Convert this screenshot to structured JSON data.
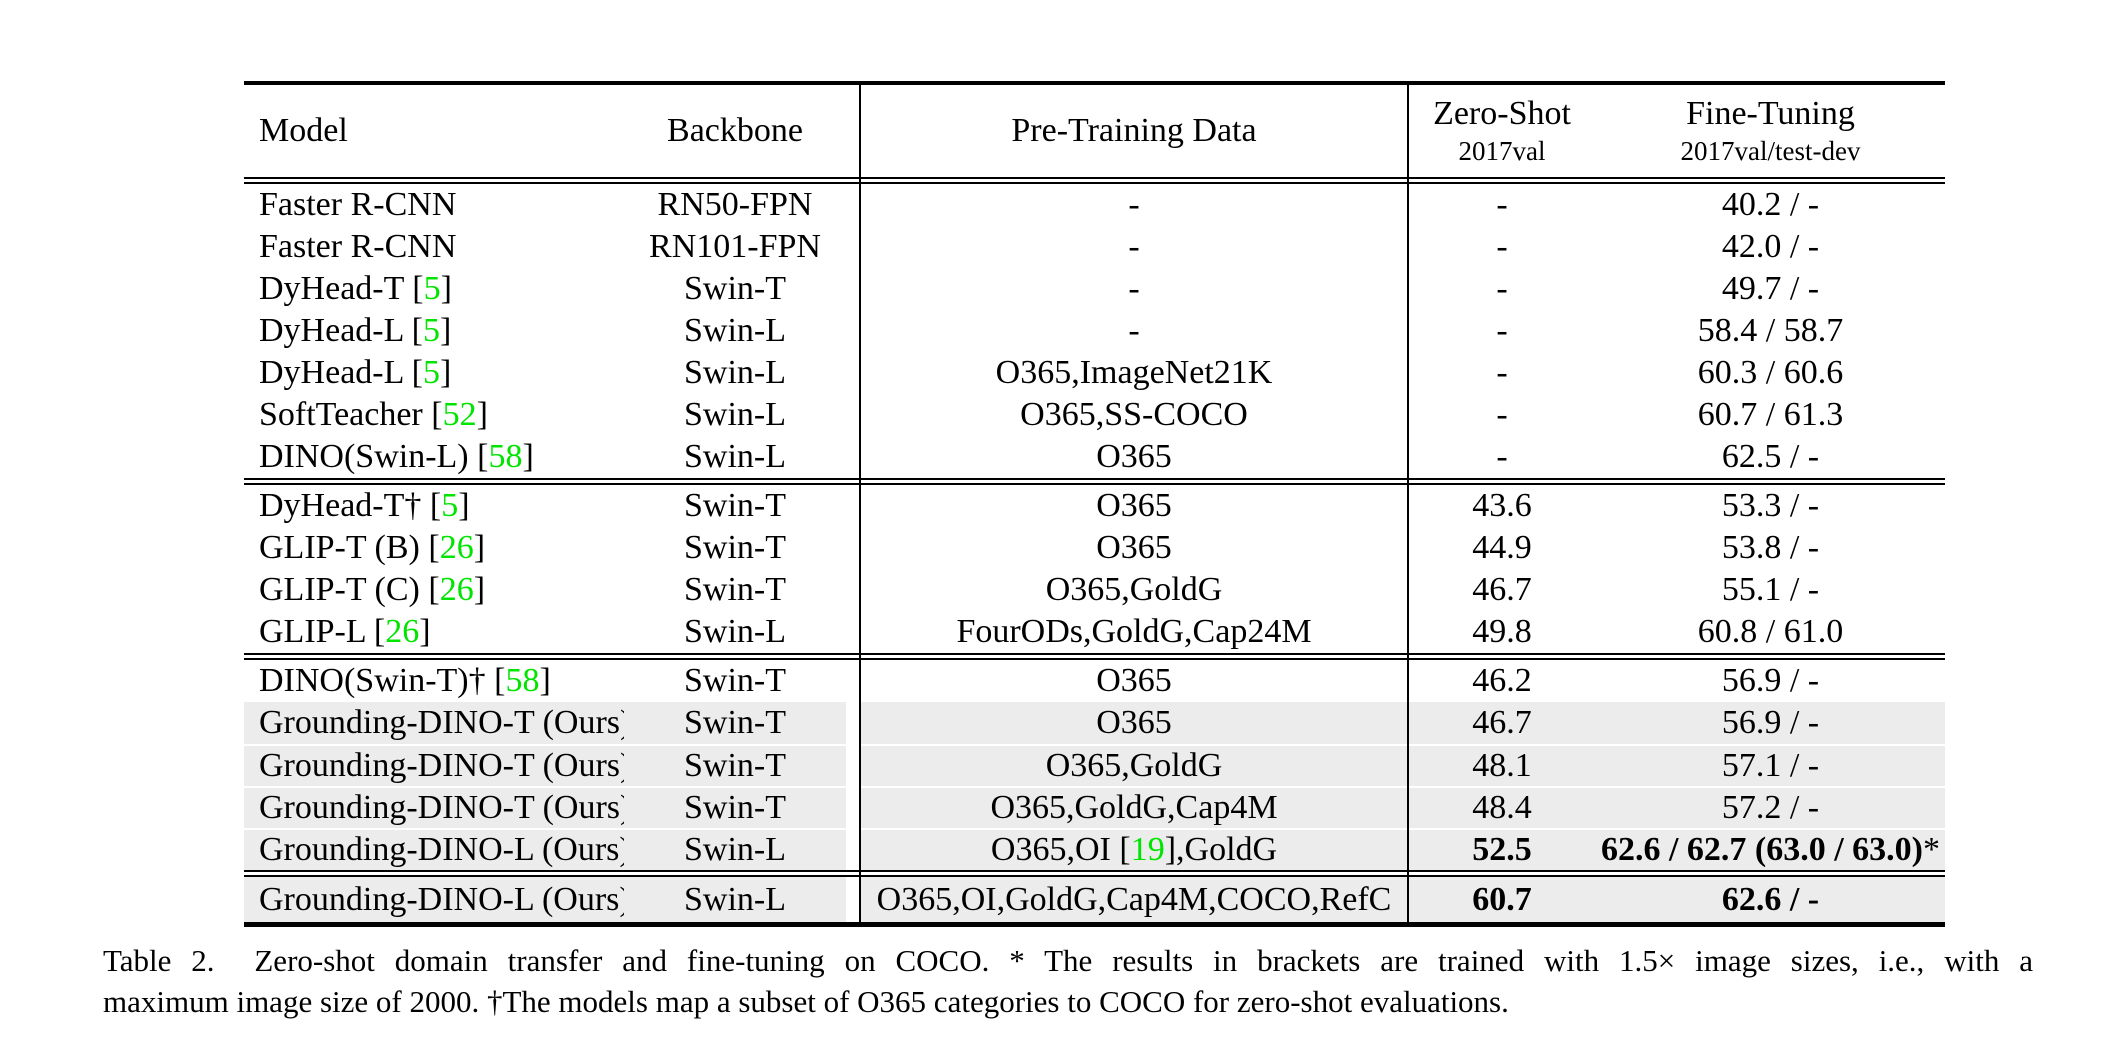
{
  "colors": {
    "highlight_row": "#ececec",
    "citation_green": "#00e400",
    "rule_black": "#000000"
  },
  "table": {
    "header": {
      "model": "Model",
      "backbone": "Backbone",
      "pretrain": "Pre-Training Data",
      "zero_shot_line1": "Zero-Shot",
      "zero_shot_line2": "2017val",
      "fine_tuning_line1": "Fine-Tuning",
      "fine_tuning_line2": "2017val/test-dev"
    },
    "groups": [
      {
        "rows": [
          {
            "model": "Faster R-CNN",
            "model_cite": "",
            "model_after": "",
            "backbone": "RN50-FPN",
            "pretrain": "-",
            "pretrain_cite": "",
            "pretrain_after": "",
            "zero_shot": "-",
            "fine_tune": "40.2 / -",
            "fine_tune_suffix": "",
            "highlight": false,
            "bold": false,
            "tall": false
          },
          {
            "model": "Faster R-CNN",
            "model_cite": "",
            "model_after": "",
            "backbone": "RN101-FPN",
            "pretrain": "-",
            "pretrain_cite": "",
            "pretrain_after": "",
            "zero_shot": "-",
            "fine_tune": "42.0 / -",
            "fine_tune_suffix": "",
            "highlight": false,
            "bold": false,
            "tall": false
          },
          {
            "model": "DyHead-T [",
            "model_cite": "5",
            "model_after": "]",
            "backbone": "Swin-T",
            "pretrain": "-",
            "pretrain_cite": "",
            "pretrain_after": "",
            "zero_shot": "-",
            "fine_tune": "49.7 / -",
            "fine_tune_suffix": "",
            "highlight": false,
            "bold": false,
            "tall": false
          },
          {
            "model": "DyHead-L [",
            "model_cite": "5",
            "model_after": "]",
            "backbone": "Swin-L",
            "pretrain": "-",
            "pretrain_cite": "",
            "pretrain_after": "",
            "zero_shot": "-",
            "fine_tune": "58.4 / 58.7",
            "fine_tune_suffix": "",
            "highlight": false,
            "bold": false,
            "tall": false
          },
          {
            "model": "DyHead-L [",
            "model_cite": "5",
            "model_after": "]",
            "backbone": "Swin-L",
            "pretrain": "O365,ImageNet21K",
            "pretrain_cite": "",
            "pretrain_after": "",
            "zero_shot": "-",
            "fine_tune": "60.3 / 60.6",
            "fine_tune_suffix": "",
            "highlight": false,
            "bold": false,
            "tall": false
          },
          {
            "model": "SoftTeacher [",
            "model_cite": "52",
            "model_after": "]",
            "backbone": "Swin-L",
            "pretrain": "O365,SS-COCO",
            "pretrain_cite": "",
            "pretrain_after": "",
            "zero_shot": "-",
            "fine_tune": "60.7 / 61.3",
            "fine_tune_suffix": "",
            "highlight": false,
            "bold": false,
            "tall": false
          },
          {
            "model": "DINO(Swin-L) [",
            "model_cite": "58",
            "model_after": "]",
            "backbone": "Swin-L",
            "pretrain": "O365",
            "pretrain_cite": "",
            "pretrain_after": "",
            "zero_shot": "-",
            "fine_tune": "62.5 / -",
            "fine_tune_suffix": "",
            "highlight": false,
            "bold": false,
            "tall": false
          }
        ]
      },
      {
        "rows": [
          {
            "model": "DyHead-T† [",
            "model_cite": "5",
            "model_after": "]",
            "backbone": "Swin-T",
            "pretrain": "O365",
            "pretrain_cite": "",
            "pretrain_after": "",
            "zero_shot": "43.6",
            "fine_tune": "53.3 / -",
            "fine_tune_suffix": "",
            "highlight": false,
            "bold": false,
            "tall": false
          },
          {
            "model": "GLIP-T (B) [",
            "model_cite": "26",
            "model_after": "]",
            "backbone": "Swin-T",
            "pretrain": "O365",
            "pretrain_cite": "",
            "pretrain_after": "",
            "zero_shot": "44.9",
            "fine_tune": "53.8 / -",
            "fine_tune_suffix": "",
            "highlight": false,
            "bold": false,
            "tall": false
          },
          {
            "model": "GLIP-T (C) [",
            "model_cite": "26",
            "model_after": "]",
            "backbone": "Swin-T",
            "pretrain": "O365,GoldG",
            "pretrain_cite": "",
            "pretrain_after": "",
            "zero_shot": "46.7",
            "fine_tune": "55.1 / -",
            "fine_tune_suffix": "",
            "highlight": false,
            "bold": false,
            "tall": false
          },
          {
            "model": "GLIP-L [",
            "model_cite": "26",
            "model_after": "]",
            "backbone": "Swin-L",
            "pretrain": "FourODs,GoldG,Cap24M",
            "pretrain_cite": "",
            "pretrain_after": "",
            "zero_shot": "49.8",
            "fine_tune": "60.8 / 61.0",
            "fine_tune_suffix": "",
            "highlight": false,
            "bold": false,
            "tall": false
          }
        ]
      },
      {
        "rows": [
          {
            "model": "DINO(Swin-T)† [",
            "model_cite": "58",
            "model_after": "]",
            "backbone": "Swin-T",
            "pretrain": "O365",
            "pretrain_cite": "",
            "pretrain_after": "",
            "zero_shot": "46.2",
            "fine_tune": "56.9 / -",
            "fine_tune_suffix": "",
            "highlight": false,
            "bold": false,
            "tall": false
          },
          {
            "model": "Grounding-DINO-T (Ours)",
            "model_cite": "",
            "model_after": "",
            "backbone": "Swin-T",
            "pretrain": "O365",
            "pretrain_cite": "",
            "pretrain_after": "",
            "zero_shot": "46.7",
            "fine_tune": "56.9 / -",
            "fine_tune_suffix": "",
            "highlight": true,
            "bold": false,
            "tall": false
          },
          {
            "model": "Grounding-DINO-T (Ours)",
            "model_cite": "",
            "model_after": "",
            "backbone": "Swin-T",
            "pretrain": "O365,GoldG",
            "pretrain_cite": "",
            "pretrain_after": "",
            "zero_shot": "48.1",
            "fine_tune": "57.1 / -",
            "fine_tune_suffix": "",
            "highlight": true,
            "bold": false,
            "tall": false
          },
          {
            "model": "Grounding-DINO-T (Ours)",
            "model_cite": "",
            "model_after": "",
            "backbone": "Swin-T",
            "pretrain": "O365,GoldG,Cap4M",
            "pretrain_cite": "",
            "pretrain_after": "",
            "zero_shot": "48.4",
            "fine_tune": "57.2 / -",
            "fine_tune_suffix": "",
            "highlight": true,
            "bold": false,
            "tall": false
          },
          {
            "model": "Grounding-DINO-L (Ours)",
            "model_cite": "",
            "model_after": "",
            "backbone": "Swin-L",
            "pretrain": "O365,OI [",
            "pretrain_cite": "19",
            "pretrain_after": "],GoldG",
            "zero_shot": "52.5",
            "fine_tune": "62.6 / 62.7 (63.0 / 63.0)",
            "fine_tune_suffix": "*",
            "highlight": true,
            "bold": true,
            "tall": false
          }
        ]
      },
      {
        "rows": [
          {
            "model": "Grounding-DINO-L (Ours)",
            "model_cite": "",
            "model_after": "",
            "backbone": "Swin-L",
            "pretrain": "O365,OI,GoldG,Cap4M,COCO,RefC",
            "pretrain_cite": "",
            "pretrain_after": "",
            "zero_shot": "60.7",
            "fine_tune": "62.6 / -",
            "fine_tune_suffix": "",
            "highlight": true,
            "bold": true,
            "tall": true
          }
        ]
      }
    ]
  },
  "caption": {
    "line1": "Table 2.  Zero-shot domain transfer and fine-tuning on COCO. * The results in brackets are trained with 1.5× image sizes, i.e., with a",
    "line2": "maximum image size of 2000. †The models map a subset of O365 categories to COCO for zero-shot evaluations."
  }
}
